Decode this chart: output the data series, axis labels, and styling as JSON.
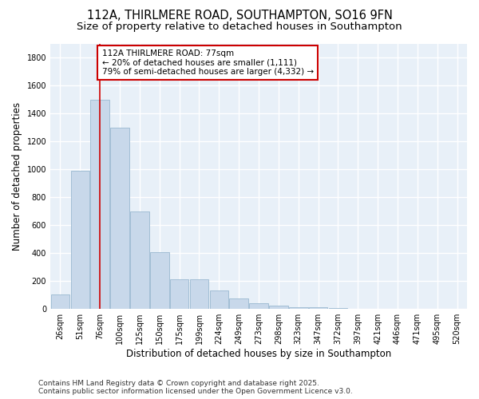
{
  "title": "112A, THIRLMERE ROAD, SOUTHAMPTON, SO16 9FN",
  "subtitle": "Size of property relative to detached houses in Southampton",
  "xlabel": "Distribution of detached houses by size in Southampton",
  "ylabel": "Number of detached properties",
  "categories": [
    "26sqm",
    "51sqm",
    "76sqm",
    "100sqm",
    "125sqm",
    "150sqm",
    "175sqm",
    "199sqm",
    "224sqm",
    "249sqm",
    "273sqm",
    "298sqm",
    "323sqm",
    "347sqm",
    "372sqm",
    "397sqm",
    "421sqm",
    "446sqm",
    "471sqm",
    "495sqm",
    "520sqm"
  ],
  "values": [
    105,
    990,
    1500,
    1300,
    700,
    410,
    210,
    210,
    135,
    75,
    40,
    25,
    15,
    10,
    5,
    3,
    2,
    2,
    2,
    2,
    2
  ],
  "bar_color": "#c8d8ea",
  "bar_edge_color": "#9ab8d0",
  "vline_x": 2,
  "vline_color": "#cc0000",
  "annotation_text": "112A THIRLMERE ROAD: 77sqm\n← 20% of detached houses are smaller (1,111)\n79% of semi-detached houses are larger (4,332) →",
  "annotation_box_facecolor": "#ffffff",
  "annotation_box_edgecolor": "#cc0000",
  "ylim": [
    0,
    1900
  ],
  "yticks": [
    0,
    200,
    400,
    600,
    800,
    1000,
    1200,
    1400,
    1600,
    1800
  ],
  "background_color": "#e8f0f8",
  "grid_color": "#ffffff",
  "fig_facecolor": "#ffffff",
  "footer_text": "Contains HM Land Registry data © Crown copyright and database right 2025.\nContains public sector information licensed under the Open Government Licence v3.0.",
  "title_fontsize": 10.5,
  "subtitle_fontsize": 9.5,
  "axis_label_fontsize": 8.5,
  "tick_fontsize": 7,
  "annotation_fontsize": 7.5,
  "footer_fontsize": 6.5
}
